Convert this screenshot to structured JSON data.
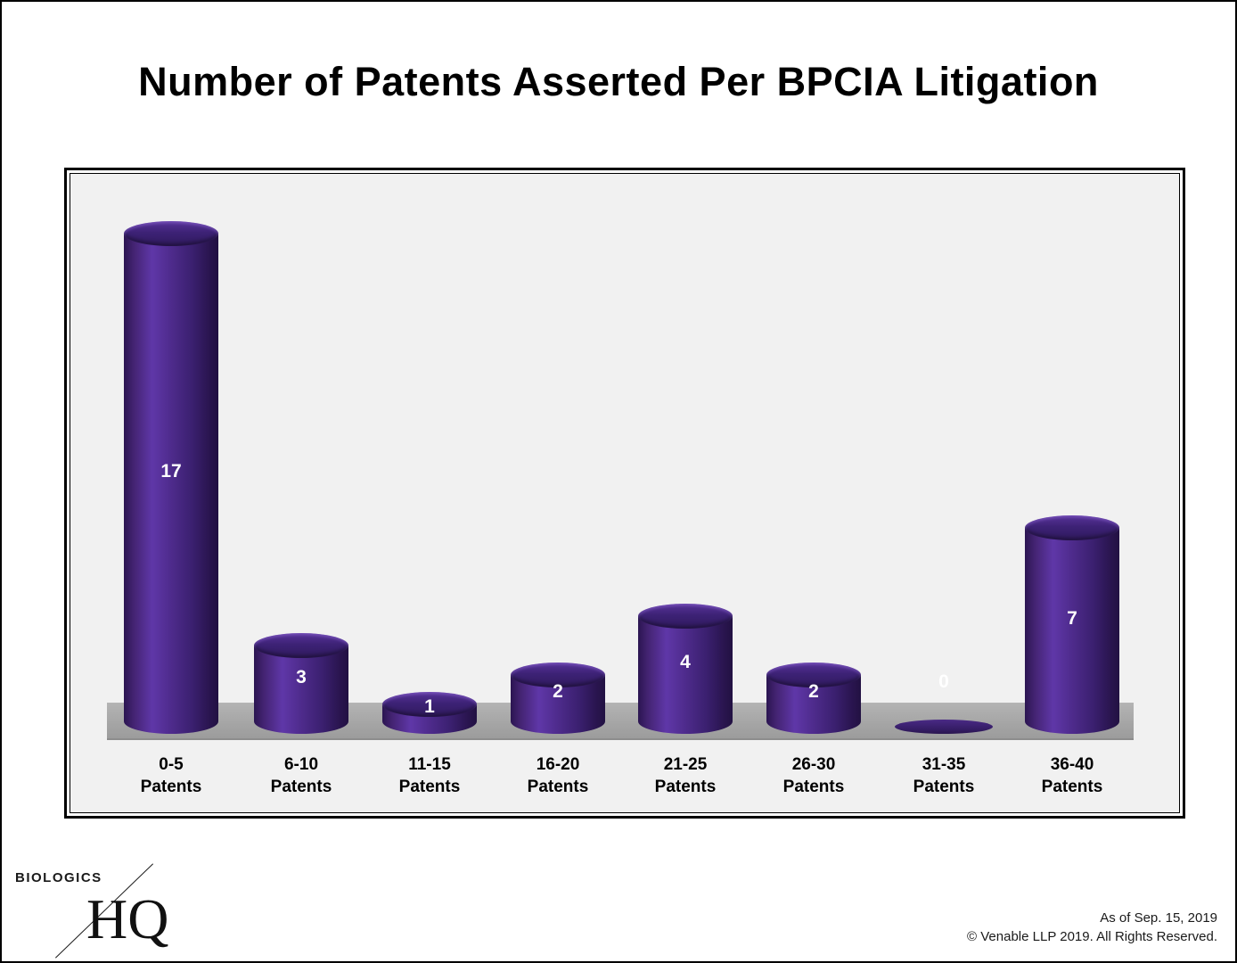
{
  "title": "Number of Patents Asserted Per BPCIA Litigation",
  "chart_data": {
    "type": "bar",
    "title": "Number of Patents Asserted Per BPCIA Litigation",
    "categories": [
      "0-5 Patents",
      "6-10 Patents",
      "11-15 Patents",
      "16-20 Patents",
      "21-25 Patents",
      "26-30 Patents",
      "31-35 Patents",
      "36-40 Patents"
    ],
    "category_line1": [
      "0-5",
      "6-10",
      "11-15",
      "16-20",
      "21-25",
      "26-30",
      "31-35",
      "36-40"
    ],
    "category_line2": "Patents",
    "values": [
      17,
      3,
      1,
      2,
      4,
      2,
      0,
      7
    ],
    "ylim": [
      0,
      18
    ],
    "grid": false,
    "legend": "none",
    "bar_style": "3d-cylinder",
    "bar_color": "#46257e",
    "value_label_color": "#ffffff",
    "floor_color": "#a6a6a6",
    "plot_background": "#f1f1f1"
  },
  "logo": {
    "word": "BIOLOGICS",
    "initials": "HQ"
  },
  "footer": {
    "as_of": "As of Sep. 15, 2019",
    "copyright": "© Venable LLP 2019. All Rights Reserved."
  }
}
